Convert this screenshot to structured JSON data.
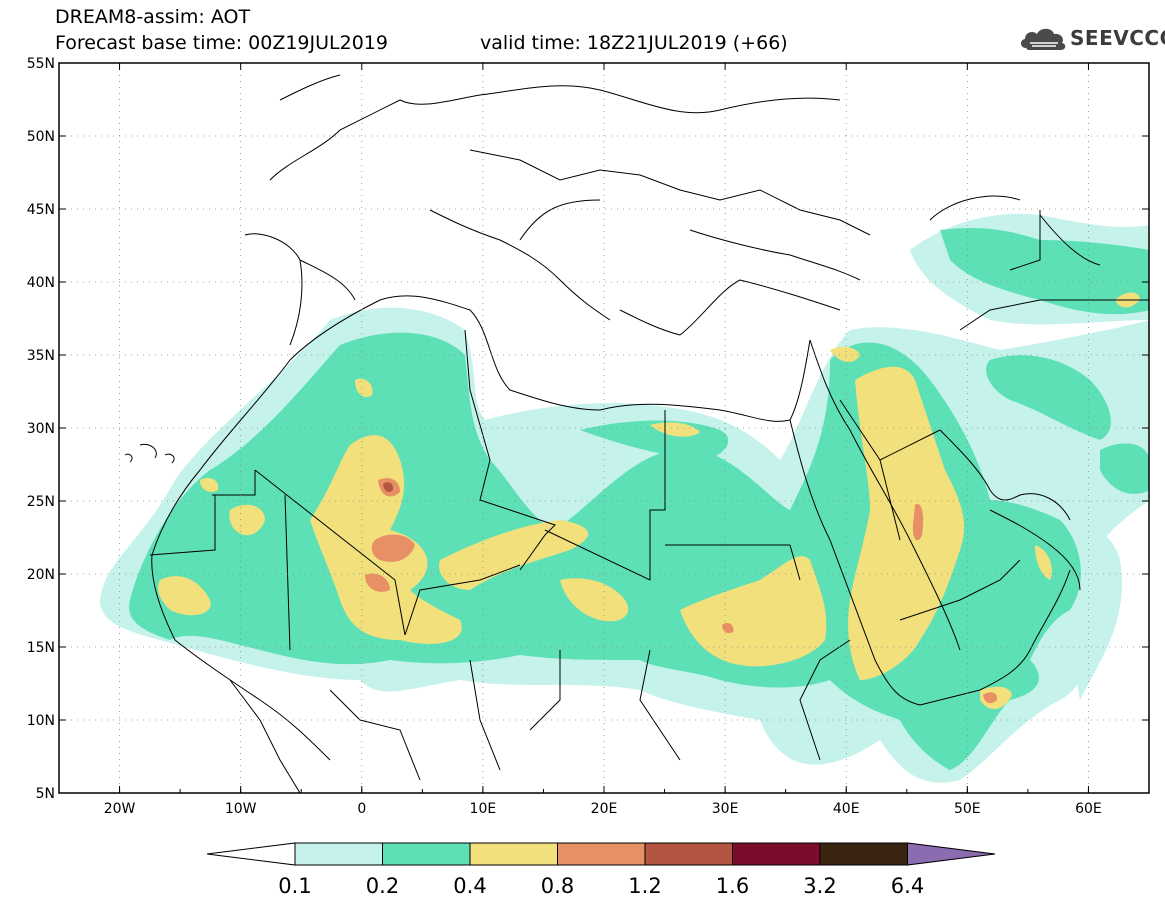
{
  "header": {
    "title_line1": "DREAM8-assim: AOT",
    "forecast_base": "Forecast base time: 00Z19JUL2019",
    "valid_time": "valid time: 18Z21JUL2019 (+66)"
  },
  "logo": {
    "text": "SEEVCCC",
    "icon": "cloud-icon"
  },
  "map": {
    "lon_range": [
      -25,
      65
    ],
    "lat_range": [
      5,
      55
    ],
    "lon_ticks": [
      {
        "value": -20,
        "label": "20W"
      },
      {
        "value": -10,
        "label": "10W"
      },
      {
        "value": 0,
        "label": "0"
      },
      {
        "value": 10,
        "label": "10E"
      },
      {
        "value": 20,
        "label": "20E"
      },
      {
        "value": 30,
        "label": "30E"
      },
      {
        "value": 40,
        "label": "40E"
      },
      {
        "value": 50,
        "label": "50E"
      },
      {
        "value": 60,
        "label": "60E"
      }
    ],
    "lat_ticks": [
      {
        "value": 5,
        "label": "5N"
      },
      {
        "value": 10,
        "label": "10N"
      },
      {
        "value": 15,
        "label": "15N"
      },
      {
        "value": 20,
        "label": "20N"
      },
      {
        "value": 25,
        "label": "25N"
      },
      {
        "value": 30,
        "label": "30N"
      },
      {
        "value": 35,
        "label": "35N"
      },
      {
        "value": 40,
        "label": "40N"
      },
      {
        "value": 45,
        "label": "45N"
      },
      {
        "value": 50,
        "label": "50N"
      },
      {
        "value": 55,
        "label": "55N"
      }
    ],
    "grid": true
  },
  "colorbar": {
    "levels": [
      "0.1",
      "0.2",
      "0.4",
      "0.8",
      "1.2",
      "1.6",
      "3.2",
      "6.4"
    ],
    "colors": [
      "#ffffff",
      "#c5f2eb",
      "#5ee0b7",
      "#f2e07c",
      "#e89065",
      "#b35540",
      "#7c0c2c",
      "#3a2412",
      "#8a6db0"
    ]
  }
}
